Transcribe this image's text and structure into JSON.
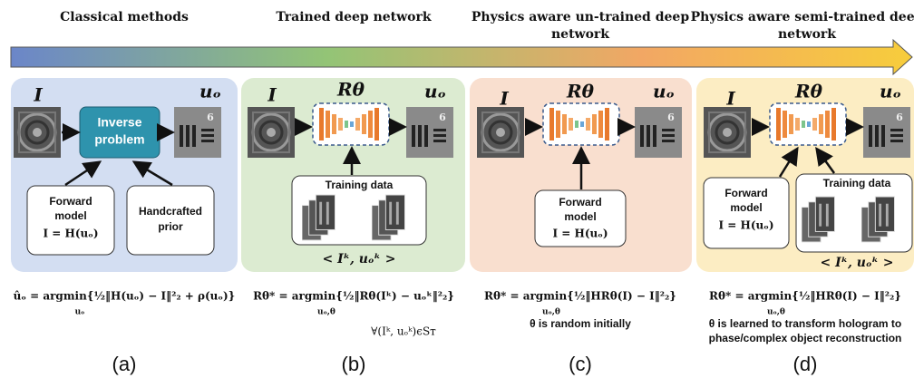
{
  "stages": [
    [
      "Classical methods"
    ],
    [
      "Trained deep network"
    ],
    [
      "Physics aware un-trained deep",
      "network"
    ],
    [
      "Physics aware semi-trained deep",
      "network"
    ]
  ],
  "panels": [
    {
      "input": "I",
      "output": "uₒ",
      "process": [
        "Inverse",
        "problem"
      ],
      "forward_model": {
        "title": [
          "Forward",
          "model"
        ],
        "equation": "I = H(uₒ)"
      },
      "prior": [
        "Handcrafted",
        "prior"
      ],
      "objective": "ûₒ = argmin{½‖H(uₒ) − I‖²₂ + ρ(uₒ)}",
      "objective_subscript": "uₒ",
      "label": "(a)"
    },
    {
      "input": "I",
      "network": "Rθ",
      "output": "uₒ",
      "training_data": {
        "title": "Training data",
        "pair": "< Iᵏ, uₒᵏ >"
      },
      "objective": "Rθ* = argmin{½‖Rθ(Iᵏ) − uₒᵏ‖²₂}",
      "objective_subscript": "uₒ,θ",
      "condition": "∀(Iᵏ, uₒᵏ)ϵSᴛ",
      "label": "(b)"
    },
    {
      "input": "I",
      "network": "Rθ",
      "output": "uₒ",
      "forward_model": {
        "title": [
          "Forward",
          "model"
        ],
        "equation": "I = H(uₒ)"
      },
      "objective": "Rθ* = argmin{½‖HRθ(I) − I‖²₂}",
      "objective_subscript": "uₒ,θ",
      "note": [
        "θ is random initially"
      ],
      "label": "(c)"
    },
    {
      "input": "I",
      "network": "Rθ",
      "output": "uₒ",
      "forward_model": {
        "title": [
          "Forward",
          "model"
        ],
        "equation": "I = H(uₒ)"
      },
      "training_data": {
        "title": "Training data",
        "pair": "< Iᵏ, uₒᵏ >"
      },
      "objective": "Rθ* = argmin{½‖HRθ(I) − I‖²₂}",
      "objective_subscript": "uₒ,θ",
      "note": [
        "θ is learned to transform hologram to",
        "phase/complex object reconstruction"
      ],
      "label": "(d)"
    }
  ]
}
